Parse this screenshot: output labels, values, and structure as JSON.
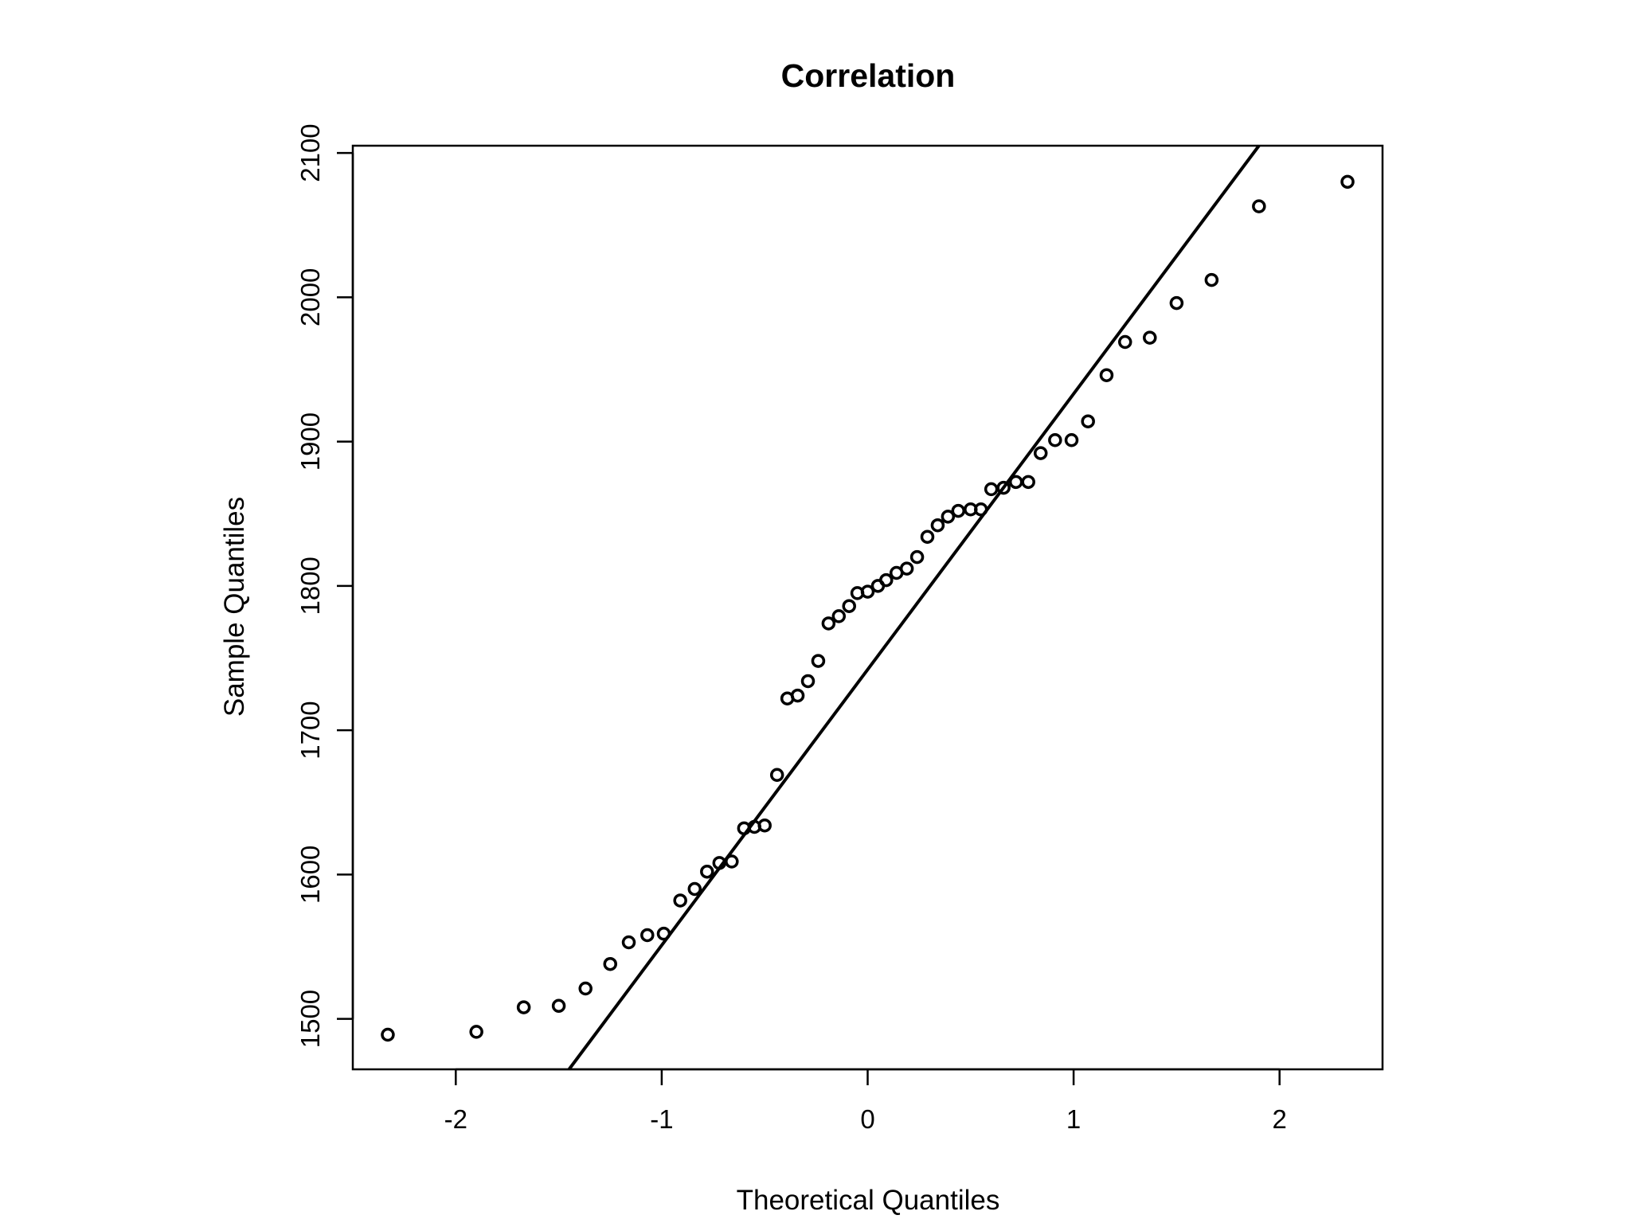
{
  "chart_data": {
    "type": "scatter",
    "title": "Correlation",
    "xlabel": "Theoretical Quantiles",
    "ylabel": "Sample Quantiles",
    "xlim": [
      -2.5,
      2.5
    ],
    "ylim": [
      1465,
      2105
    ],
    "xticks": [
      -2,
      -1,
      0,
      1,
      2
    ],
    "yticks": [
      1500,
      1600,
      1700,
      1800,
      1900,
      2000,
      2100
    ],
    "reference_line": {
      "x1": -1.45,
      "y1": 1465,
      "x2": 1.9,
      "y2": 2105
    },
    "points": [
      {
        "x": -2.33,
        "y": 1489
      },
      {
        "x": -1.9,
        "y": 1491
      },
      {
        "x": -1.67,
        "y": 1508
      },
      {
        "x": -1.5,
        "y": 1509
      },
      {
        "x": -1.37,
        "y": 1521
      },
      {
        "x": -1.25,
        "y": 1538
      },
      {
        "x": -1.16,
        "y": 1553
      },
      {
        "x": -1.07,
        "y": 1558
      },
      {
        "x": -0.99,
        "y": 1559
      },
      {
        "x": -0.91,
        "y": 1582
      },
      {
        "x": -0.84,
        "y": 1590
      },
      {
        "x": -0.78,
        "y": 1602
      },
      {
        "x": -0.72,
        "y": 1608
      },
      {
        "x": -0.66,
        "y": 1609
      },
      {
        "x": -0.6,
        "y": 1632
      },
      {
        "x": -0.55,
        "y": 1633
      },
      {
        "x": -0.5,
        "y": 1634
      },
      {
        "x": -0.44,
        "y": 1669
      },
      {
        "x": -0.39,
        "y": 1722
      },
      {
        "x": -0.34,
        "y": 1724
      },
      {
        "x": -0.29,
        "y": 1734
      },
      {
        "x": -0.24,
        "y": 1748
      },
      {
        "x": -0.19,
        "y": 1774
      },
      {
        "x": -0.14,
        "y": 1779
      },
      {
        "x": -0.09,
        "y": 1786
      },
      {
        "x": -0.05,
        "y": 1795
      },
      {
        "x": 0.0,
        "y": 1796
      },
      {
        "x": 0.05,
        "y": 1800
      },
      {
        "x": 0.09,
        "y": 1804
      },
      {
        "x": 0.14,
        "y": 1809
      },
      {
        "x": 0.19,
        "y": 1812
      },
      {
        "x": 0.24,
        "y": 1820
      },
      {
        "x": 0.29,
        "y": 1834
      },
      {
        "x": 0.34,
        "y": 1842
      },
      {
        "x": 0.39,
        "y": 1848
      },
      {
        "x": 0.44,
        "y": 1852
      },
      {
        "x": 0.5,
        "y": 1853
      },
      {
        "x": 0.55,
        "y": 1853
      },
      {
        "x": 0.6,
        "y": 1867
      },
      {
        "x": 0.66,
        "y": 1868
      },
      {
        "x": 0.72,
        "y": 1872
      },
      {
        "x": 0.78,
        "y": 1872
      },
      {
        "x": 0.84,
        "y": 1892
      },
      {
        "x": 0.91,
        "y": 1901
      },
      {
        "x": 0.99,
        "y": 1901
      },
      {
        "x": 1.07,
        "y": 1914
      },
      {
        "x": 1.16,
        "y": 1946
      },
      {
        "x": 1.25,
        "y": 1969
      },
      {
        "x": 1.37,
        "y": 1972
      },
      {
        "x": 1.5,
        "y": 1996
      },
      {
        "x": 1.67,
        "y": 2012
      },
      {
        "x": 1.9,
        "y": 2063
      },
      {
        "x": 2.33,
        "y": 2080
      }
    ]
  }
}
